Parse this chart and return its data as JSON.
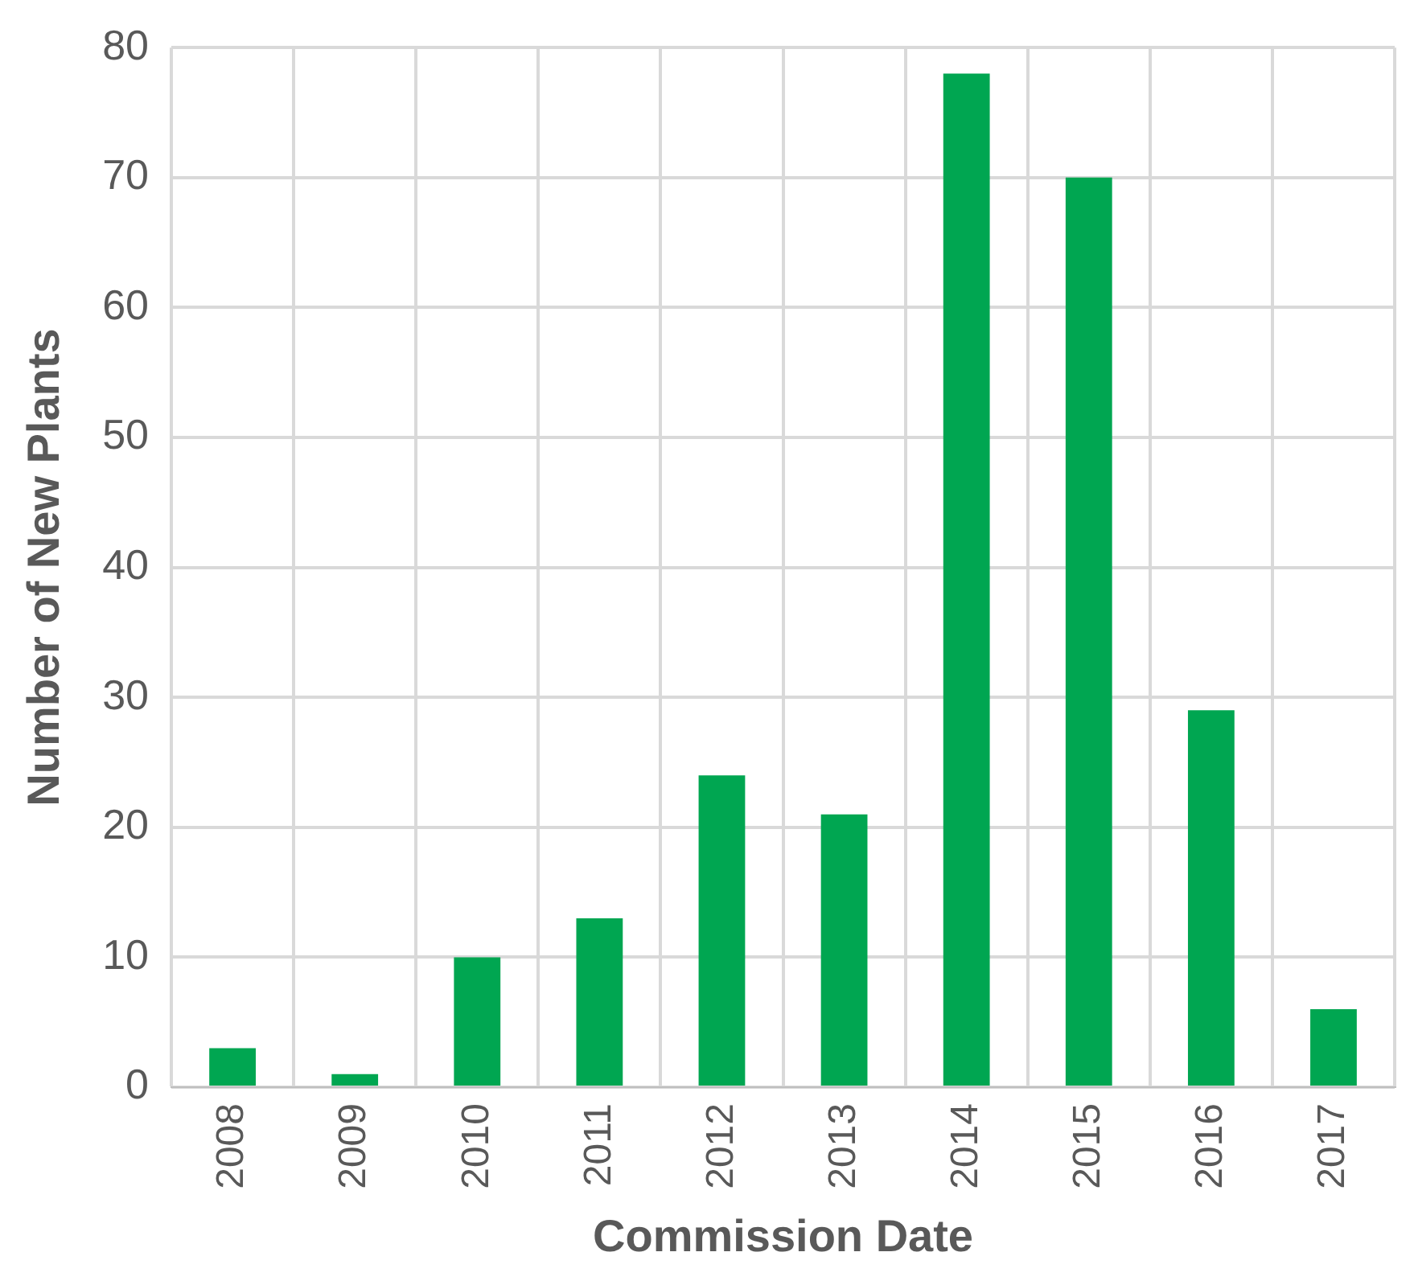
{
  "chart_data": {
    "type": "bar",
    "xlabel": "Commission Date",
    "ylabel": "Number of New Plants",
    "categories": [
      "2008",
      "2009",
      "2010",
      "2011",
      "2012",
      "2013",
      "2014",
      "2015",
      "2016",
      "2017"
    ],
    "values": [
      3,
      1,
      10,
      13,
      24,
      21,
      78,
      70,
      29,
      6
    ],
    "color": "#00a651",
    "ylim": [
      0,
      80
    ],
    "yticks": [
      0,
      10,
      20,
      30,
      40,
      50,
      60,
      70,
      80
    ],
    "grid": true,
    "legend": false
  }
}
